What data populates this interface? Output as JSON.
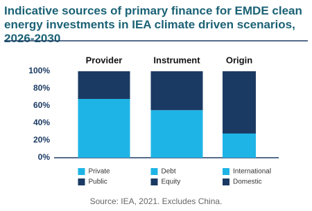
{
  "chart_data": {
    "type": "bar",
    "stacked": true,
    "title": "Indicative sources of primary finance for EMDE clean energy investments in IEA climate driven scenarios, 2026-2030",
    "categories": [
      "Provider",
      "Instrument",
      "Origin"
    ],
    "segments": [
      [
        {
          "name": "Private",
          "color": "#1fb4e6",
          "value": 68
        },
        {
          "name": "Public",
          "color": "#1b3a63",
          "value": 32
        }
      ],
      [
        {
          "name": "Debt",
          "color": "#1fb4e6",
          "value": 55
        },
        {
          "name": "Equity",
          "color": "#1b3a63",
          "value": 45
        }
      ],
      [
        {
          "name": "International",
          "color": "#1fb4e6",
          "value": 28
        },
        {
          "name": "Domestic",
          "color": "#1b3a63",
          "value": 72
        }
      ]
    ],
    "ylim": [
      0,
      100
    ],
    "yticks": [
      {
        "value": 0,
        "label": "0%"
      },
      {
        "value": 20,
        "label": "20%"
      },
      {
        "value": 40,
        "label": "40%"
      },
      {
        "value": 60,
        "label": "60%"
      },
      {
        "value": 80,
        "label": "80%"
      },
      {
        "value": 100,
        "label": "100%"
      }
    ],
    "source": "Source: IEA, 2021. Excludes China."
  }
}
